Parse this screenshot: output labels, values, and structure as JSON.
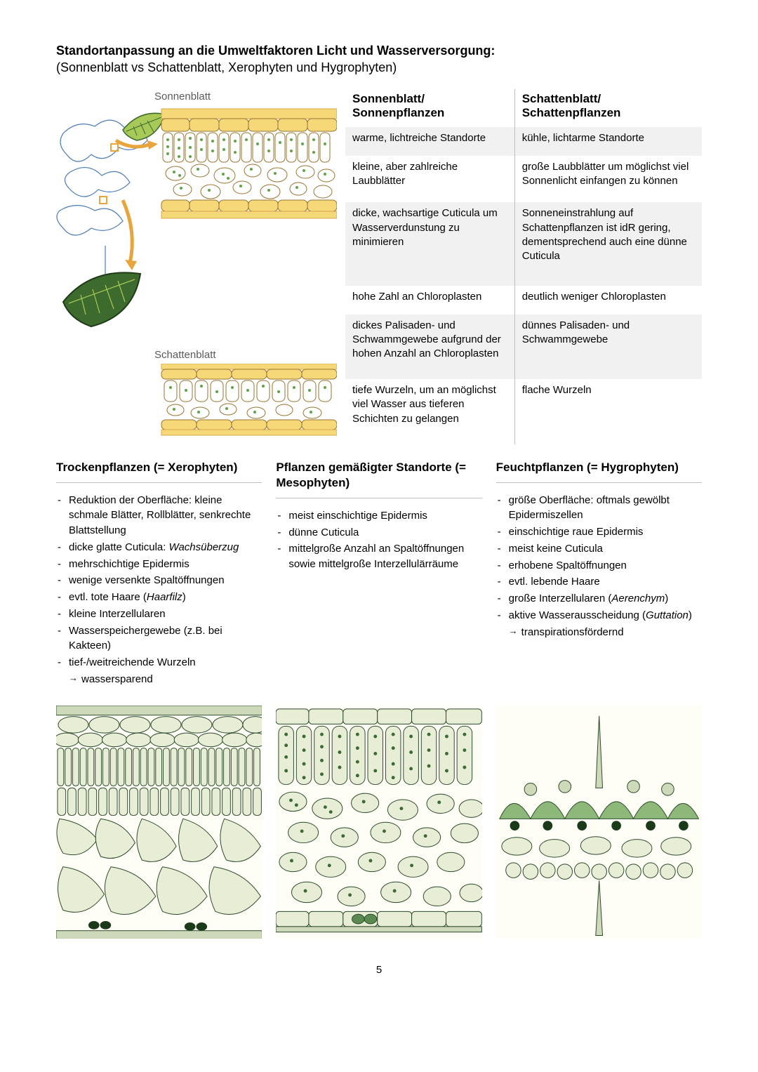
{
  "header": {
    "title_bold": "Standortanpassung an die Umweltfaktoren Licht und Wasserversorgung:",
    "subtitle": "(Sonnenblatt vs Schattenblatt, Xerophyten und Hygrophyten)"
  },
  "diagram_labels": {
    "sun": "Sonnenblatt",
    "shade": "Schattenblatt"
  },
  "comparison": {
    "col1_header": "Sonnenblatt/ Sonnenpflanzen",
    "col2_header": "Schattenblatt/ Schattenpflanzen",
    "rows": [
      {
        "left": "warme, lichtreiche Standorte",
        "right": "kühle, lichtarme Standorte",
        "striped": true
      },
      {
        "left": "kleine, aber zahlreiche Laubblätter",
        "right": "große Laubblätter um möglichst viel Sonnenlicht einfangen zu können",
        "striped": false
      },
      {
        "left": "dicke, wachsartige Cuticula um Wasserverdunstung zu minimieren",
        "right": "Sonneneinstrahlung auf Schattenpflanzen ist idR gering, dementsprechend auch eine dünne Cuticula",
        "striped": true
      },
      {
        "left": "hohe Zahl an Chloroplasten",
        "right": "deutlich weniger Chloroplasten",
        "striped": false
      },
      {
        "left": "dickes Palisaden- und Schwammgewebe aufgrund der hohen Anzahl an Chloroplasten",
        "right": "dünnes Palisaden- und Schwammgewebe",
        "striped": true
      },
      {
        "left": "tiefe Wurzeln, um an möglichst viel Wasser aus tieferen Schichten zu gelangen",
        "right": "flache Wurzeln",
        "striped": false
      }
    ]
  },
  "columns": {
    "xero": {
      "heading": "Trockenpflanzen (= Xerophyten)",
      "items": [
        {
          "text": "Reduktion der Oberfläche: kleine schmale Blätter, Rollblätter, senkrechte Blattstellung"
        },
        {
          "text": "dicke glatte Cuticula:",
          "italic_after": "Wachsüberzug"
        },
        {
          "text": "mehrschichtige Epidermis"
        },
        {
          "text": "wenige versenkte Spaltöffnungen"
        },
        {
          "text": "evtl. tote Haare",
          "italic_paren": "Haarfilz"
        },
        {
          "text": "kleine Interzellularen"
        },
        {
          "text": "Wasserspeichergewebe (z.B. bei Kakteen)"
        },
        {
          "text": "tief-/weitreichende Wurzeln"
        },
        {
          "text": "wassersparend",
          "sub": true
        }
      ]
    },
    "meso": {
      "heading": "Pflanzen gemäßigter Standorte (= Mesophyten)",
      "items": [
        {
          "text": "meist einschichtige Epidermis"
        },
        {
          "text": "dünne Cuticula"
        },
        {
          "text": "mittelgroße Anzahl an Spaltöffnungen sowie mittelgroße Interzellulärräume"
        }
      ]
    },
    "hygro": {
      "heading": "Feuchtpflanzen (= Hygrophyten)",
      "items": [
        {
          "text": "größe Oberfläche: oftmals gewölbt Epidermiszellen"
        },
        {
          "text": "einschichtige raue Epidermis"
        },
        {
          "text": "meist keine Cuticula"
        },
        {
          "text": "erhobene Spaltöffnungen"
        },
        {
          "text": "evtl. lebende Haare"
        },
        {
          "text": "große Interzellularen",
          "italic_paren": "Aerenchym"
        },
        {
          "text": "aktive Wasserausscheidung",
          "italic_paren": "Guttation"
        },
        {
          "text": "transpirationsfördernd",
          "sub": true
        }
      ]
    }
  },
  "leaf_diagram": {
    "colors": {
      "tree_outline": "#4a7bb8",
      "leaf_light": "#a8c957",
      "leaf_dark": "#3d6b2e",
      "arrow": "#e8a53c",
      "cell_wall": "#d9a84a",
      "cell_wall_dark": "#9a7330",
      "cuticle": "#f5d878",
      "chloroplast": "#5fa345",
      "chloroplast_dark": "#2d5f1f"
    }
  },
  "cross_sections": {
    "types": [
      "xerophyte",
      "mesophyte",
      "hygrophyte"
    ],
    "colors": {
      "outline": "#2b4a2b",
      "cell_fill_light": "#e8edd6",
      "cell_fill_mid": "#cdd9b8",
      "cell_fill_green": "#8db87a",
      "cell_fill_dgreen": "#5a8a4f",
      "chloroplast": "#3a6b33",
      "guard_dark": "#1a3a1a",
      "background": "#fefdf6"
    }
  },
  "page_number": "5"
}
